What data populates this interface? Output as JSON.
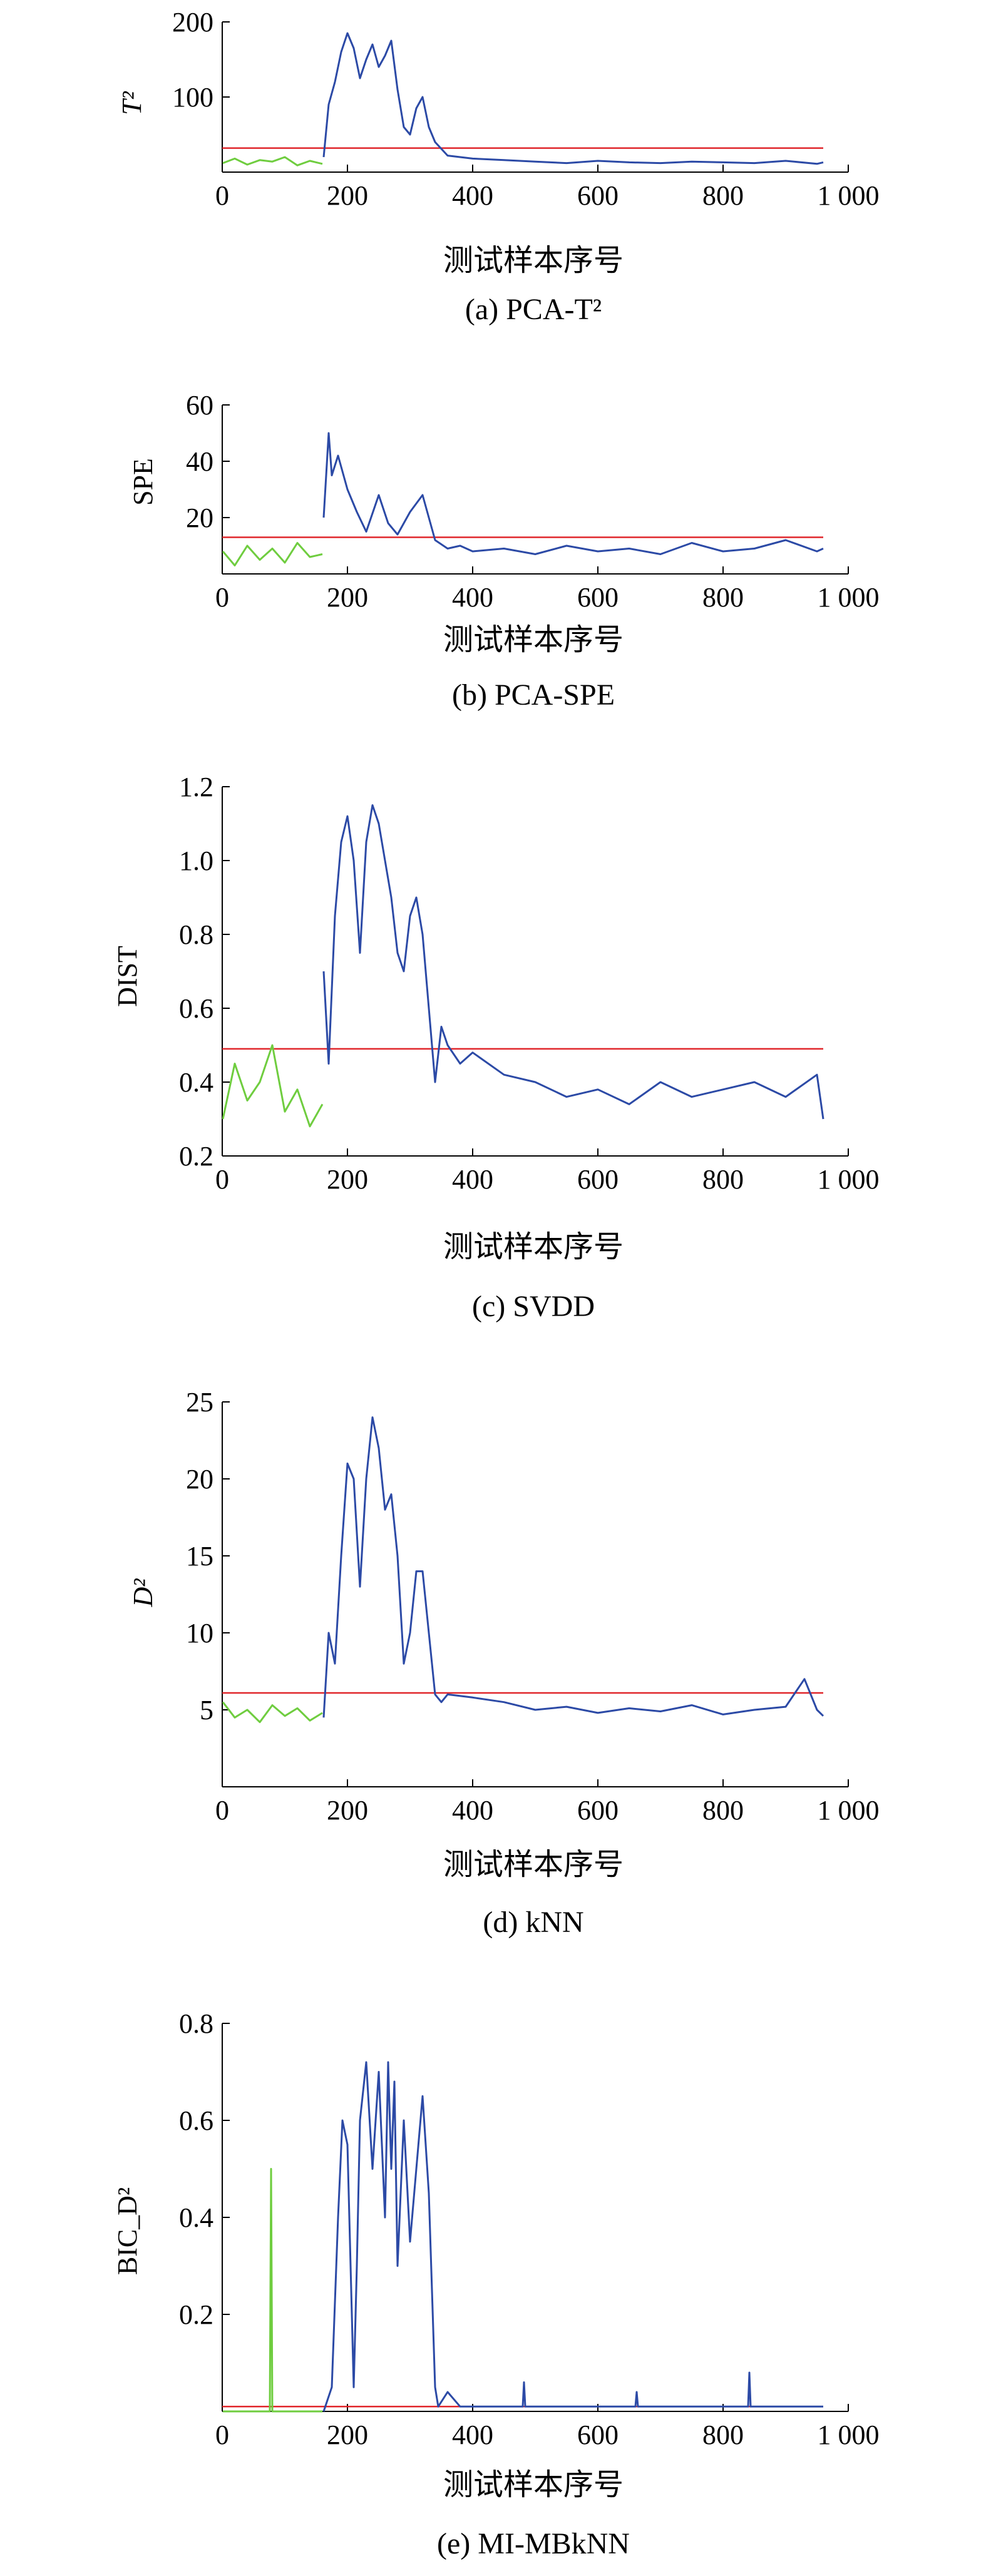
{
  "colors": {
    "normal": "#6fcd3f",
    "fault": "#2c4aa6",
    "limit": "#e0262b",
    "axis": "#000000"
  },
  "chart_data": [
    {
      "type": "line",
      "panel_id": "a",
      "caption": "(a) PCA-T²",
      "ylabel": "T²",
      "xlabel": "测试样本序号",
      "xlim": [
        0,
        1000
      ],
      "ylim": [
        0,
        200
      ],
      "xticks": [
        0,
        200,
        400,
        600,
        800,
        1000
      ],
      "xtick_labels": [
        "0",
        "200",
        "400",
        "600",
        "800",
        "1 000"
      ],
      "yticks": [
        100,
        200
      ],
      "ytick_labels": [
        "100",
        "200"
      ],
      "control_limit": 32,
      "series": [
        {
          "role": "normal",
          "x": [
            1,
            20,
            40,
            60,
            80,
            100,
            120,
            140,
            160
          ],
          "y": [
            12,
            18,
            10,
            16,
            14,
            20,
            9,
            15,
            11
          ]
        },
        {
          "role": "fault",
          "x": [
            162,
            170,
            180,
            190,
            200,
            210,
            220,
            230,
            240,
            250,
            260,
            270,
            280,
            290,
            300,
            310,
            320,
            330,
            340,
            360,
            380,
            400,
            450,
            500,
            550,
            600,
            650,
            700,
            750,
            800,
            850,
            900,
            950,
            960
          ],
          "y": [
            20,
            90,
            120,
            160,
            185,
            165,
            125,
            150,
            170,
            140,
            155,
            175,
            110,
            60,
            50,
            85,
            100,
            60,
            40,
            22,
            20,
            18,
            16,
            14,
            12,
            15,
            13,
            12,
            14,
            13,
            12,
            15,
            11,
            13
          ]
        }
      ]
    },
    {
      "type": "line",
      "panel_id": "b",
      "caption": "(b) PCA-SPE",
      "ylabel": "SPE",
      "xlabel": "测试样本序号",
      "xlim": [
        0,
        1000
      ],
      "ylim": [
        0,
        60
      ],
      "xticks": [
        0,
        200,
        400,
        600,
        800,
        1000
      ],
      "xtick_labels": [
        "0",
        "200",
        "400",
        "600",
        "800",
        "1 000"
      ],
      "yticks": [
        20,
        40,
        60
      ],
      "ytick_labels": [
        "20",
        "40",
        "60"
      ],
      "control_limit": 13,
      "series": [
        {
          "role": "normal",
          "x": [
            1,
            20,
            40,
            60,
            80,
            100,
            120,
            140,
            160
          ],
          "y": [
            8,
            3,
            10,
            5,
            9,
            4,
            11,
            6,
            7
          ]
        },
        {
          "role": "fault",
          "x": [
            162,
            170,
            175,
            185,
            200,
            215,
            230,
            250,
            265,
            280,
            300,
            320,
            340,
            360,
            380,
            400,
            450,
            500,
            550,
            600,
            650,
            700,
            750,
            800,
            850,
            900,
            950,
            960
          ],
          "y": [
            20,
            50,
            35,
            42,
            30,
            22,
            15,
            28,
            18,
            14,
            22,
            28,
            12,
            9,
            10,
            8,
            9,
            7,
            10,
            8,
            9,
            7,
            11,
            8,
            9,
            12,
            8,
            9
          ]
        }
      ]
    },
    {
      "type": "line",
      "panel_id": "c",
      "caption": "(c) SVDD",
      "ylabel": "DIST",
      "xlabel": "测试样本序号",
      "xlim": [
        0,
        1000
      ],
      "ylim": [
        0.2,
        1.2
      ],
      "xticks": [
        0,
        200,
        400,
        600,
        800,
        1000
      ],
      "xtick_labels": [
        "0",
        "200",
        "400",
        "600",
        "800",
        "1 000"
      ],
      "yticks": [
        0.2,
        0.4,
        0.6,
        0.8,
        1.0,
        1.2
      ],
      "ytick_labels": [
        "0.2",
        "0.4",
        "0.6",
        "0.8",
        "1.0",
        "1.2"
      ],
      "control_limit": 0.49,
      "series": [
        {
          "role": "normal",
          "x": [
            1,
            20,
            40,
            60,
            80,
            100,
            120,
            140,
            160
          ],
          "y": [
            0.3,
            0.45,
            0.35,
            0.4,
            0.5,
            0.32,
            0.38,
            0.28,
            0.34
          ]
        },
        {
          "role": "fault",
          "x": [
            162,
            170,
            180,
            190,
            200,
            210,
            220,
            230,
            240,
            250,
            260,
            270,
            280,
            290,
            300,
            310,
            320,
            330,
            340,
            350,
            360,
            380,
            400,
            450,
            500,
            550,
            600,
            650,
            700,
            750,
            800,
            850,
            900,
            950,
            960
          ],
          "y": [
            0.7,
            0.45,
            0.85,
            1.05,
            1.12,
            1.0,
            0.75,
            1.05,
            1.15,
            1.1,
            1.0,
            0.9,
            0.75,
            0.7,
            0.85,
            0.9,
            0.8,
            0.6,
            0.4,
            0.55,
            0.5,
            0.45,
            0.48,
            0.42,
            0.4,
            0.36,
            0.38,
            0.34,
            0.4,
            0.36,
            0.38,
            0.4,
            0.36,
            0.42,
            0.3
          ]
        }
      ]
    },
    {
      "type": "line",
      "panel_id": "d",
      "caption": "(d) kNN",
      "ylabel": "D²",
      "xlabel": "测试样本序号",
      "xlim": [
        0,
        1000
      ],
      "ylim": [
        0,
        25
      ],
      "xticks": [
        0,
        200,
        400,
        600,
        800,
        1000
      ],
      "xtick_labels": [
        "0",
        "200",
        "400",
        "600",
        "800",
        "1 000"
      ],
      "yticks": [
        5,
        10,
        15,
        20,
        25
      ],
      "ytick_labels": [
        "5",
        "10",
        "15",
        "20",
        "25"
      ],
      "control_limit": 6.1,
      "series": [
        {
          "role": "normal",
          "x": [
            1,
            20,
            40,
            60,
            80,
            100,
            120,
            140,
            160
          ],
          "y": [
            5.5,
            4.5,
            5.0,
            4.2,
            5.3,
            4.6,
            5.1,
            4.3,
            4.8
          ]
        },
        {
          "role": "fault",
          "x": [
            162,
            170,
            180,
            190,
            200,
            210,
            220,
            230,
            240,
            250,
            260,
            270,
            280,
            290,
            300,
            310,
            320,
            330,
            340,
            350,
            360,
            400,
            450,
            500,
            550,
            600,
            650,
            700,
            750,
            800,
            850,
            900,
            930,
            950,
            960
          ],
          "y": [
            4.5,
            10,
            8,
            15,
            21,
            20,
            13,
            20,
            24,
            22,
            18,
            19,
            15,
            8,
            10,
            14,
            14,
            10,
            6,
            5.5,
            6.0,
            5.8,
            5.5,
            5.0,
            5.2,
            4.8,
            5.1,
            4.9,
            5.3,
            4.7,
            5.0,
            5.2,
            7.0,
            5.0,
            4.6
          ]
        }
      ]
    },
    {
      "type": "line",
      "panel_id": "e",
      "caption": "(e) MI-MBkNN",
      "ylabel": "BIC_D²",
      "xlabel": "测试样本序号",
      "xlim": [
        0,
        1000
      ],
      "ylim": [
        0,
        0.8
      ],
      "xticks": [
        0,
        200,
        400,
        600,
        800,
        1000
      ],
      "xtick_labels": [
        "0",
        "200",
        "400",
        "600",
        "800",
        "1 000"
      ],
      "yticks": [
        0.2,
        0.4,
        0.6,
        0.8
      ],
      "ytick_labels": [
        "0.2",
        "0.4",
        "0.6",
        "0.8"
      ],
      "control_limit": 0.01,
      "series": [
        {
          "role": "normal",
          "x": [
            1,
            40,
            76,
            78,
            80,
            82,
            120,
            160
          ],
          "y": [
            0.0,
            0.0,
            0.0,
            0.5,
            0.0,
            0.0,
            0.0,
            0.0
          ]
        },
        {
          "role": "fault",
          "x": [
            162,
            175,
            185,
            192,
            200,
            210,
            215,
            220,
            230,
            240,
            250,
            260,
            265,
            270,
            275,
            280,
            290,
            300,
            310,
            320,
            330,
            340,
            345,
            360,
            380,
            400,
            480,
            482,
            484,
            600,
            660,
            662,
            664,
            760,
            800,
            840,
            842,
            844,
            900,
            960
          ],
          "y": [
            0.0,
            0.05,
            0.4,
            0.6,
            0.55,
            0.05,
            0.3,
            0.6,
            0.72,
            0.5,
            0.7,
            0.4,
            0.72,
            0.5,
            0.68,
            0.3,
            0.6,
            0.35,
            0.5,
            0.65,
            0.45,
            0.05,
            0.01,
            0.04,
            0.01,
            0.01,
            0.01,
            0.06,
            0.01,
            0.01,
            0.01,
            0.04,
            0.01,
            0.01,
            0.01,
            0.01,
            0.08,
            0.01,
            0.01,
            0.01
          ]
        }
      ]
    }
  ]
}
